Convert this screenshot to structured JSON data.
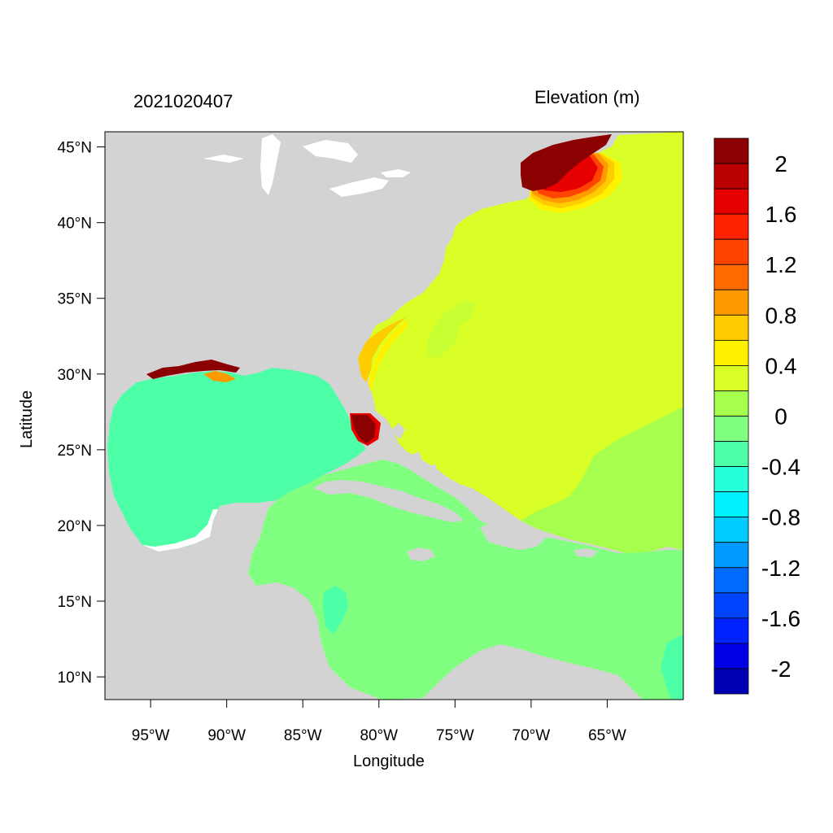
{
  "header": {
    "date_label": "2021020407",
    "variable_label": "Elevation (m)"
  },
  "axes": {
    "xlabel": "Longitude",
    "ylabel": "Latitude",
    "lon_range": [
      -98,
      -60
    ],
    "lat_range": [
      8.5,
      46
    ],
    "x_ticks": [
      {
        "value": -95,
        "label": "95°W"
      },
      {
        "value": -90,
        "label": "90°W"
      },
      {
        "value": -85,
        "label": "85°W"
      },
      {
        "value": -80,
        "label": "80°W"
      },
      {
        "value": -75,
        "label": "75°W"
      },
      {
        "value": -70,
        "label": "70°W"
      },
      {
        "value": -65,
        "label": "65°W"
      }
    ],
    "y_ticks": [
      {
        "value": 45,
        "label": "45°N"
      },
      {
        "value": 40,
        "label": "40°N"
      },
      {
        "value": 35,
        "label": "35°N"
      },
      {
        "value": 30,
        "label": "30°N"
      },
      {
        "value": 25,
        "label": "25°N"
      },
      {
        "value": 20,
        "label": "20°N"
      },
      {
        "value": 15,
        "label": "15°N"
      },
      {
        "value": 10,
        "label": "10°N"
      }
    ]
  },
  "colorbar": {
    "colors": [
      "#8b0000",
      "#bb0000",
      "#e60000",
      "#ff2200",
      "#ff4400",
      "#ff6a00",
      "#ff9a00",
      "#ffcc00",
      "#fff200",
      "#d9ff26",
      "#a6ff4d",
      "#80ff80",
      "#4dffa6",
      "#26ffd9",
      "#00f2ff",
      "#00ccff",
      "#009aff",
      "#006aff",
      "#0044ff",
      "#0022ff",
      "#0000e6",
      "#0000b3"
    ],
    "labels": [
      {
        "value": 2,
        "label": "2"
      },
      {
        "value": 1.6,
        "label": "1.6"
      },
      {
        "value": 1.2,
        "label": "1.2"
      },
      {
        "value": 0.8,
        "label": "0.8"
      },
      {
        "value": 0.4,
        "label": "0.4"
      },
      {
        "value": 0,
        "label": "0"
      },
      {
        "value": -0.4,
        "label": "-0.4"
      },
      {
        "value": -0.8,
        "label": "-0.8"
      },
      {
        "value": -1.2,
        "label": "-1.2"
      },
      {
        "value": -1.6,
        "label": "-1.6"
      },
      {
        "value": -2,
        "label": "-2"
      }
    ]
  },
  "colors": {
    "land": "#d3d3d3",
    "ocean_north_atlantic": "#d9ff26",
    "gulf_of_mexico": "#4dffa6",
    "caribbean": "#80ff80",
    "high_surge": "#8b0000"
  }
}
